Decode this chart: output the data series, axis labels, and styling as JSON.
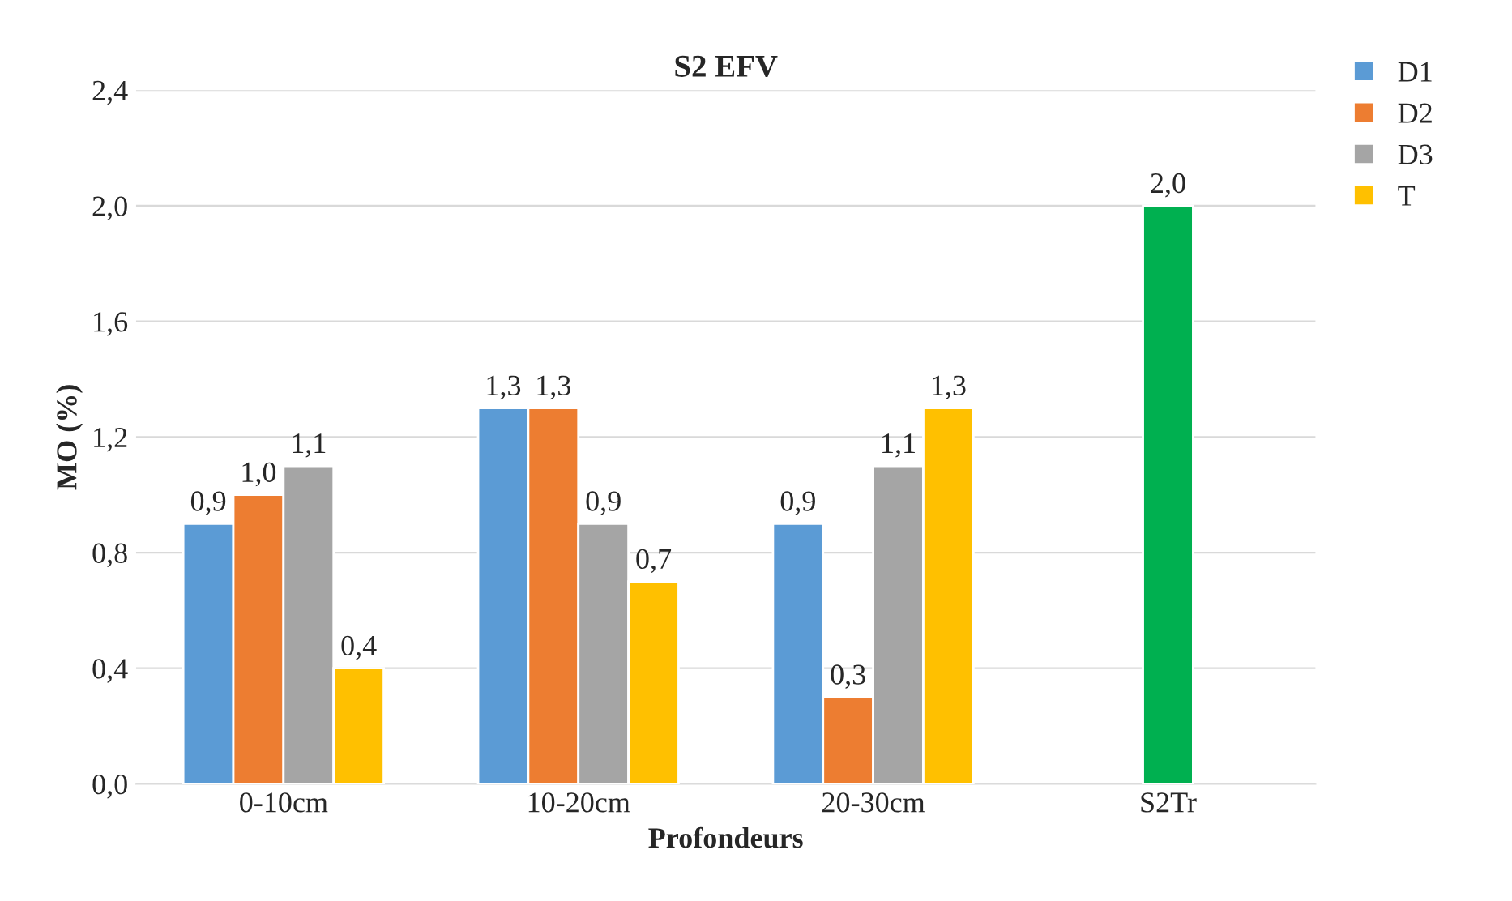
{
  "chart_data": {
    "type": "bar",
    "title": "S2 EFV",
    "xlabel": "Profondeurs",
    "ylabel": "MO (%)",
    "categories": [
      "0-10cm",
      "10-20cm",
      "20-30cm",
      "S2Tr"
    ],
    "series": [
      {
        "name": "D1",
        "color": "#5b9bd5",
        "values": [
          0.9,
          1.3,
          0.9,
          null
        ],
        "value_labels": [
          "0,9",
          "1,3",
          "0,9",
          null
        ]
      },
      {
        "name": "D2",
        "color": "#ed7d31",
        "values": [
          1.0,
          1.3,
          0.3,
          null
        ],
        "value_labels": [
          "1,0",
          "1,3",
          "0,3",
          null
        ]
      },
      {
        "name": "D3",
        "color": "#a5a5a5",
        "values": [
          1.1,
          0.9,
          1.1,
          null
        ],
        "value_labels": [
          "1,1",
          "0,9",
          "1,1",
          null
        ]
      },
      {
        "name": "T",
        "color": "#ffc000",
        "values": [
          0.4,
          0.7,
          1.3,
          null
        ],
        "value_labels": [
          "0,4",
          "0,7",
          "1,3",
          null
        ]
      },
      {
        "color": "#00b050",
        "values": [
          null,
          null,
          null,
          2.0
        ],
        "value_labels": [
          null,
          null,
          null,
          "2,0"
        ]
      }
    ],
    "ylim": [
      0,
      2.4
    ],
    "yticks": [
      {
        "value": 0,
        "label": "0,0"
      },
      {
        "value": 0.4,
        "label": "0,4"
      },
      {
        "value": 0.8,
        "label": "0,8"
      },
      {
        "value": 1.2,
        "label": "1,2"
      },
      {
        "value": 1.6,
        "label": "1,6"
      },
      {
        "value": 2.0,
        "label": "2,0"
      },
      {
        "value": 2.4,
        "label": "2,4"
      }
    ],
    "grid": "y",
    "legend": "top right"
  }
}
